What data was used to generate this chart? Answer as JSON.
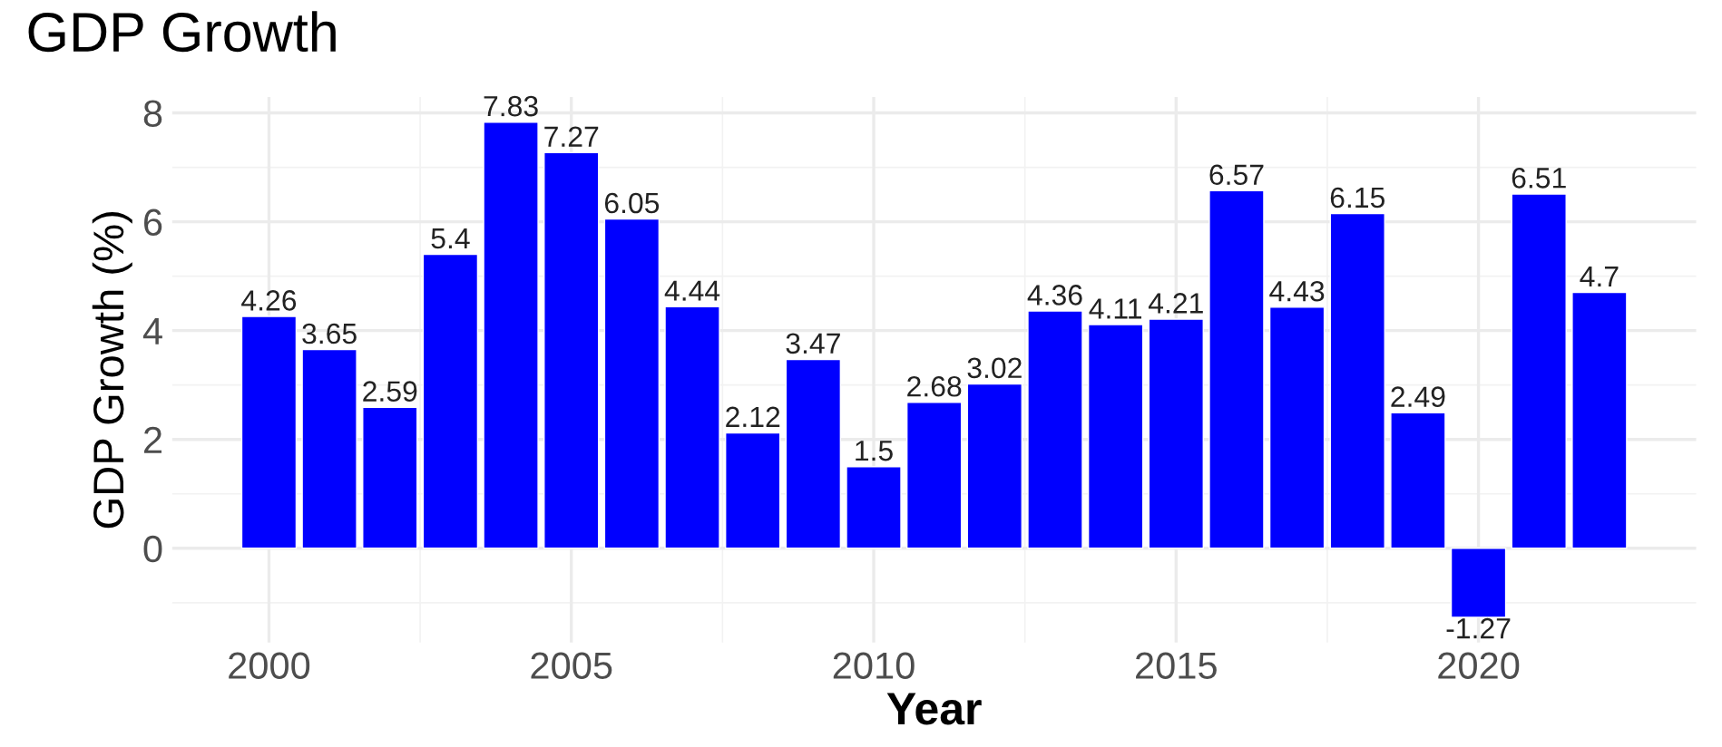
{
  "chart_data": {
    "type": "bar",
    "title": "GDP Growth",
    "xlabel": "Year",
    "ylabel": "GDP Growth (%)",
    "x": [
      2000,
      2001,
      2002,
      2003,
      2004,
      2005,
      2006,
      2007,
      2008,
      2009,
      2010,
      2011,
      2012,
      2013,
      2014,
      2015,
      2016,
      2017,
      2018,
      2019,
      2020,
      2021,
      2022
    ],
    "values": [
      4.26,
      3.65,
      2.59,
      5.4,
      7.83,
      7.27,
      6.05,
      4.44,
      2.12,
      3.47,
      1.5,
      2.68,
      3.02,
      4.36,
      4.11,
      4.21,
      6.57,
      4.43,
      6.15,
      2.49,
      -1.27,
      6.51,
      4.7
    ],
    "color": "#0000ff",
    "data_labels": true,
    "grid": true,
    "legend": false,
    "xlim": [
      1998.4,
      2023.6
    ],
    "xticks": [
      2000,
      2005,
      2010,
      2015,
      2020
    ],
    "ylim": [
      -1.73,
      8.29
    ],
    "yticks": [
      0,
      2,
      4,
      6,
      8
    ]
  }
}
